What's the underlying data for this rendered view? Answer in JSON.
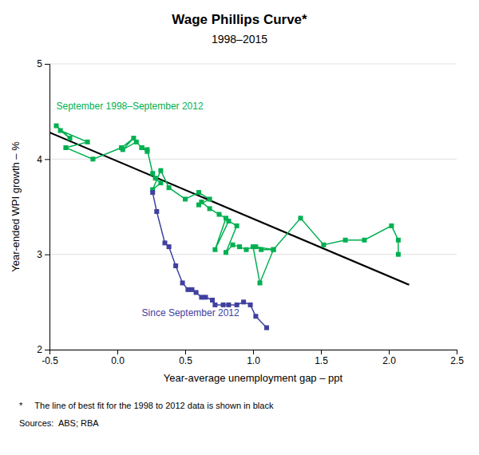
{
  "chart_data": {
    "type": "line",
    "title": "Wage Phillips Curve*",
    "subtitle": "1998–2015",
    "x_label": "Year-average unemployment gap – ppt",
    "y_label": "Year-ended WPI growth – %",
    "xlim": [
      -0.5,
      2.5
    ],
    "ylim": [
      2,
      5
    ],
    "xticks": [
      -0.5,
      {
        "value": 0.0,
        "label": "0.0"
      },
      0.5,
      {
        "value": 1.0,
        "label": "1.0"
      },
      1.5,
      {
        "value": 2.0,
        "label": "2.0"
      },
      2.5
    ],
    "yticks": [
      2,
      3,
      4,
      5
    ],
    "grid": true,
    "series": [
      {
        "type": "line",
        "color": "#00B050",
        "marker": "square",
        "x": [
          -0.45,
          -0.35,
          -0.42,
          -0.22,
          -0.38,
          -0.18,
          0.03,
          0.12,
          0.04,
          0.14,
          0.18,
          0.22,
          0.18,
          0.22,
          0.26,
          0.28,
          0.32,
          0.26,
          0.32,
          0.38,
          0.5,
          0.6,
          0.68,
          0.6,
          0.62,
          0.68,
          0.75,
          0.8,
          0.72,
          0.82,
          0.88,
          0.8,
          0.85,
          0.9,
          0.95,
          1.0,
          1.05,
          1.15,
          1.02,
          1.06,
          1.15,
          1.35,
          1.52,
          1.68,
          1.82,
          2.02,
          2.07,
          2.07
        ],
        "values": [
          4.35,
          4.22,
          4.3,
          4.18,
          4.12,
          4.0,
          4.12,
          4.22,
          4.1,
          4.18,
          4.12,
          4.08,
          4.12,
          4.1,
          3.85,
          3.8,
          3.75,
          3.68,
          3.88,
          3.7,
          3.58,
          3.65,
          3.58,
          3.52,
          3.55,
          3.48,
          3.42,
          3.38,
          3.05,
          3.35,
          3.3,
          3.02,
          3.1,
          3.08,
          3.05,
          3.08,
          2.7,
          3.05,
          3.08,
          3.05,
          3.05,
          3.38,
          3.1,
          3.15,
          3.15,
          3.3,
          3.15,
          3.0
        ]
      },
      {
        "type": "line",
        "color": "#4040A0",
        "marker": "square",
        "x": [
          0.26,
          0.29,
          0.35,
          0.38,
          0.43,
          0.48,
          0.52,
          0.55,
          0.58,
          0.62,
          0.65,
          0.7,
          0.72,
          0.78,
          0.82,
          0.88,
          0.93,
          0.98,
          1.02,
          1.1
        ],
        "values": [
          3.65,
          3.45,
          3.12,
          3.08,
          2.88,
          2.7,
          2.63,
          2.63,
          2.6,
          2.55,
          2.55,
          2.52,
          2.47,
          2.47,
          2.47,
          2.47,
          2.5,
          2.47,
          2.35,
          2.23
        ]
      },
      {
        "type": "line",
        "color": "#000000",
        "x": [
          -0.5,
          2.15
        ],
        "values": [
          4.28,
          2.68
        ]
      }
    ],
    "annotations": [
      {
        "text": "September 1998–September 2012",
        "x": -0.45,
        "y": 4.55,
        "color": "#00B050"
      },
      {
        "text": "Since September 2012",
        "x": 0.18,
        "y": 2.38,
        "color": "#4040A0"
      }
    ],
    "footnote": "*     The line of best fit for the 1998 to 2012 data is shown in black",
    "source": "Sources:  ABS; RBA"
  }
}
